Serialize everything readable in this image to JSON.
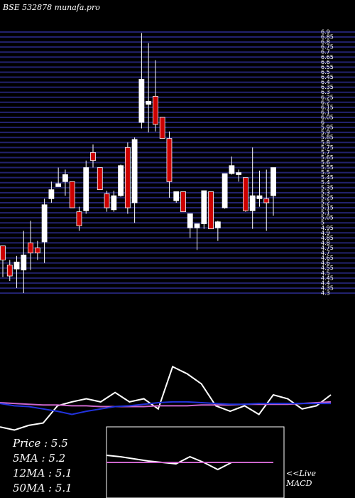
{
  "title": "BSE 532878 munafa.pro",
  "info": [
    "Price  : 5.5",
    "5MA : 5.2",
    "12MA : 5.1",
    "50MA : 5.1"
  ],
  "live_label": "<<Live",
  "chart_data": [
    {
      "type": "candlestick",
      "up_color": "#ffffff",
      "down_color": "#cc0000",
      "grid": true,
      "grid_color": "#22226e",
      "ylim": [
        4.3,
        6.9
      ],
      "yticks": [
        4.3,
        4.35,
        4.4,
        4.45,
        4.5,
        4.55,
        4.6,
        4.65,
        4.7,
        4.75,
        4.8,
        4.85,
        4.9,
        4.95,
        5,
        5.05,
        5.1,
        5.15,
        5.2,
        5.25,
        5.3,
        5.35,
        5.4,
        5.45,
        5.5,
        5.55,
        5.6,
        5.65,
        5.7,
        5.75,
        5.8,
        5.85,
        5.9,
        5.95,
        6,
        6.05,
        6.1,
        6.15,
        6.2,
        6.25,
        6.3,
        6.35,
        6.4,
        6.45,
        6.5,
        6.55,
        6.6,
        6.65,
        6.7,
        6.75,
        6.8,
        6.85,
        6.9
      ],
      "open": [
        4.77,
        4.58,
        4.54,
        4.53,
        4.8,
        4.75,
        4.81,
        5.24,
        5.36,
        5.41,
        5.41,
        5.11,
        5.12,
        5.7,
        5.55,
        5.29,
        5.13,
        5.27,
        5.75,
        5.2,
        6.0,
        6.18,
        6.26,
        6.05,
        5.84,
        5.22,
        5.31,
        4.95,
        4.95,
        4.99,
        5.31,
        4.95,
        5.15,
        5.49,
        5.48,
        5.45,
        5.12,
        5.24,
        5.24,
        5.27
      ],
      "high": [
        4.77,
        4.63,
        4.67,
        4.92,
        5.02,
        4.82,
        5.24,
        5.41,
        5.55,
        5.53,
        5.41,
        5.16,
        5.62,
        5.78,
        5.55,
        5.32,
        5.32,
        5.58,
        5.8,
        5.85,
        6.89,
        6.79,
        6.62,
        6.05,
        5.91,
        5.31,
        5.31,
        5.09,
        4.99,
        5.32,
        5.31,
        5.02,
        5.49,
        5.66,
        5.53,
        5.45,
        5.75,
        5.52,
        5.53,
        5.55
      ],
      "low": [
        4.46,
        4.42,
        4.35,
        4.3,
        4.53,
        4.63,
        4.6,
        5.2,
        5.36,
        5.27,
        5.15,
        4.92,
        5.09,
        5.55,
        5.33,
        5.11,
        5.11,
        5.26,
        5.09,
        5.0,
        5.94,
        5.9,
        5.91,
        5.84,
        5.25,
        5.2,
        5.11,
        4.85,
        4.73,
        4.94,
        4.94,
        4.82,
        5.14,
        5.48,
        5.41,
        5.11,
        4.94,
        5.16,
        4.92,
        5.07
      ],
      "close": [
        4.63,
        4.47,
        4.61,
        4.68,
        4.7,
        4.7,
        5.18,
        5.33,
        5.39,
        5.48,
        5.15,
        4.97,
        5.55,
        5.62,
        5.33,
        5.15,
        5.27,
        5.57,
        5.15,
        5.83,
        6.43,
        6.21,
        5.98,
        5.84,
        5.41,
        5.31,
        5.11,
        5.09,
        4.99,
        5.32,
        4.94,
        5.01,
        5.49,
        5.57,
        5.5,
        5.12,
        5.27,
        5.27,
        5.2,
        5.55
      ]
    },
    {
      "type": "line",
      "ylim": [
        0,
        100
      ],
      "series": [
        {
          "color": "#ffffff",
          "values": [
            9,
            5,
            11,
            14,
            36,
            41,
            45,
            41,
            53,
            41,
            45,
            32,
            86,
            77,
            64,
            36,
            29,
            36,
            25,
            50,
            45,
            32,
            36,
            50
          ]
        },
        {
          "color": "#cc66cc",
          "values": [
            40,
            39,
            38,
            37,
            37,
            36,
            36,
            35,
            35,
            35,
            35,
            36,
            36,
            36,
            37,
            37,
            37,
            38,
            38,
            38,
            38,
            39,
            40,
            41
          ]
        },
        {
          "color": "#2233dd",
          "values": [
            39,
            36,
            35,
            32,
            29,
            25,
            29,
            32,
            35,
            36,
            38,
            40,
            41,
            41,
            40,
            39,
            38,
            38,
            39,
            39,
            39,
            39,
            39,
            39
          ]
        }
      ]
    },
    {
      "type": "line",
      "title": "MACD",
      "ylim": [
        -1,
        1
      ],
      "series": [
        {
          "color": "#ffffff",
          "values": [
            0.2,
            0.16,
            0.1,
            0.04,
            0,
            -0.04,
            0.16,
            0,
            -0.2,
            0,
            0,
            0,
            0
          ]
        },
        {
          "color": "#cc66cc",
          "values": [
            0,
            0,
            0,
            0,
            0,
            0,
            0,
            0,
            0,
            0,
            0,
            0,
            0
          ]
        }
      ]
    }
  ]
}
